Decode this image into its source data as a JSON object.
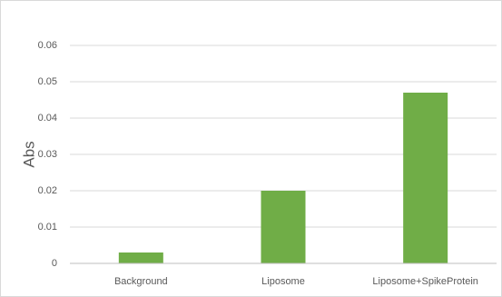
{
  "chart_data": {
    "type": "bar",
    "title": "",
    "xlabel": "",
    "ylabel": "Abs",
    "categories": [
      "Background",
      "Liposome",
      "Liposome+SpikeProtein"
    ],
    "values": [
      0.003,
      0.02,
      0.047
    ],
    "ylim": [
      0,
      0.06
    ],
    "yticks": [
      "0",
      "0.01",
      "0.02",
      "0.03",
      "0.04",
      "0.05",
      "0.06"
    ],
    "grid": true,
    "legend": "none",
    "bar_color": "#70ad47",
    "grid_color": "#d9d9d9",
    "axis_line_color": "#bfbfbf"
  }
}
